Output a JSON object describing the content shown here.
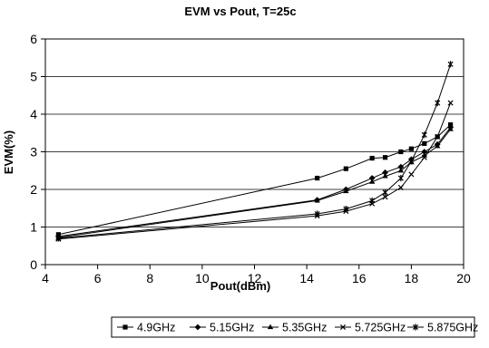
{
  "chart_data": {
    "type": "line",
    "title": "EVM vs Pout, T=25c",
    "xlabel": "Pout(dBm)",
    "ylabel": "EVM(%)",
    "xlim": [
      4,
      20
    ],
    "ylim": [
      0,
      6
    ],
    "xticks": [
      4,
      6,
      8,
      10,
      12,
      14,
      16,
      18,
      20
    ],
    "yticks": [
      0,
      1,
      2,
      3,
      4,
      5,
      6
    ],
    "grid": "horizontal",
    "legend": "bottom",
    "series": [
      {
        "name": "4.9GHz",
        "marker": "square",
        "x": [
          4.5,
          14.4,
          15.5,
          16.5,
          17.0,
          17.6,
          18.0,
          18.5,
          19.0,
          19.5
        ],
        "y": [
          0.8,
          2.3,
          2.55,
          2.83,
          2.85,
          3.0,
          3.08,
          3.22,
          3.4,
          3.72
        ]
      },
      {
        "name": "5.15GHz",
        "marker": "diamond",
        "x": [
          4.5,
          14.4,
          15.5,
          16.5,
          17.0,
          17.6,
          18.0,
          18.5,
          19.0,
          19.5
        ],
        "y": [
          0.75,
          1.72,
          2.0,
          2.3,
          2.45,
          2.6,
          2.8,
          3.0,
          3.2,
          3.65
        ]
      },
      {
        "name": "5.35GHz",
        "marker": "triangle",
        "x": [
          4.5,
          14.4,
          15.5,
          16.5,
          17.0,
          17.6,
          18.0,
          18.5,
          19.0,
          19.5
        ],
        "y": [
          0.72,
          1.7,
          1.95,
          2.2,
          2.35,
          2.5,
          2.72,
          2.9,
          3.15,
          3.6
        ]
      },
      {
        "name": "5.725GHz",
        "marker": "x",
        "x": [
          4.5,
          14.4,
          15.5,
          16.5,
          17.0,
          17.6,
          18.0,
          18.5,
          19.0,
          19.5
        ],
        "y": [
          0.68,
          1.3,
          1.42,
          1.62,
          1.8,
          2.05,
          2.4,
          2.85,
          3.4,
          4.3
        ]
      },
      {
        "name": "5.875GHz",
        "marker": "asterisk",
        "x": [
          4.5,
          14.4,
          15.5,
          16.5,
          17.0,
          17.6,
          18.0,
          18.5,
          19.0,
          19.5
        ],
        "y": [
          0.7,
          1.35,
          1.48,
          1.7,
          1.92,
          2.3,
          2.75,
          3.45,
          4.3,
          5.33
        ]
      }
    ]
  }
}
